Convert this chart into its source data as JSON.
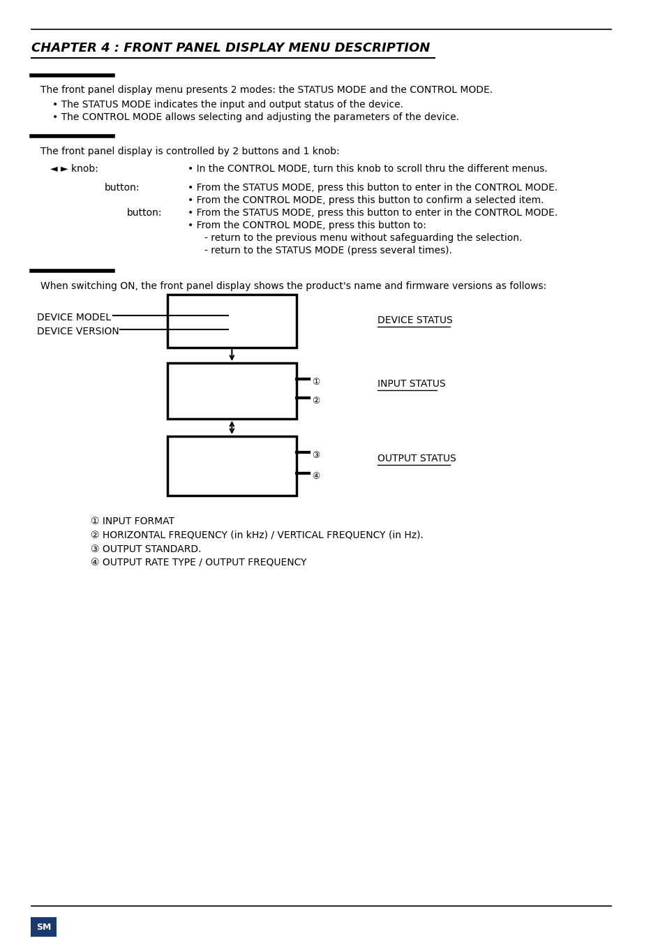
{
  "title": "CHAPTER 4 : FRONT PANEL DISPLAY MENU DESCRIPTION",
  "bg_color": "#ffffff",
  "text_color": "#000000",
  "section1_intro": "The front panel display menu presents 2 modes: the STATUS MODE and the CONTROL MODE.",
  "section1_bullet1": "The STATUS MODE indicates the input and output status of the device.",
  "section1_bullet2": "The CONTROL MODE allows selecting and adjusting the parameters of the device.",
  "section2_intro": "The front panel display is controlled by 2 buttons and 1 knob:",
  "knob_label": "◄ ► knob:",
  "knob_desc": "In the CONTROL MODE, turn this knob to scroll thru the different menus.",
  "button1_label": "button:",
  "button1_desc1": "From the STATUS MODE, press this button to enter in the CONTROL MODE.",
  "button1_desc2": "From the CONTROL MODE, press this button to confirm a selected item.",
  "button2_label": "button:",
  "button2_desc1": "From the STATUS MODE, press this button to enter in the CONTROL MODE.",
  "button2_desc2": "From the CONTROL MODE, press this button to:",
  "button2_desc3": "- return to the previous menu without safeguarding the selection.",
  "button2_desc4": "- return to the STATUS MODE (press several times).",
  "section3_intro": "When switching ON, the front panel display shows the product's name and firmware versions as follows:",
  "device_model_label": "DEVICE MODEL",
  "device_version_label": "DEVICE VERSION",
  "device_status_label": "DEVICE STATUS",
  "input_status_label": "INPUT STATUS",
  "output_status_label": "OUTPUT STATUS",
  "legend1": "① INPUT FORMAT",
  "legend2": "② HORIZONTAL FREQUENCY (in kHz) / VERTICAL FREQUENCY (in Hz).",
  "legend3": "③ OUTPUT STANDARD.",
  "legend4": "④ OUTPUT RATE TYPE / OUTPUT FREQUENCY"
}
